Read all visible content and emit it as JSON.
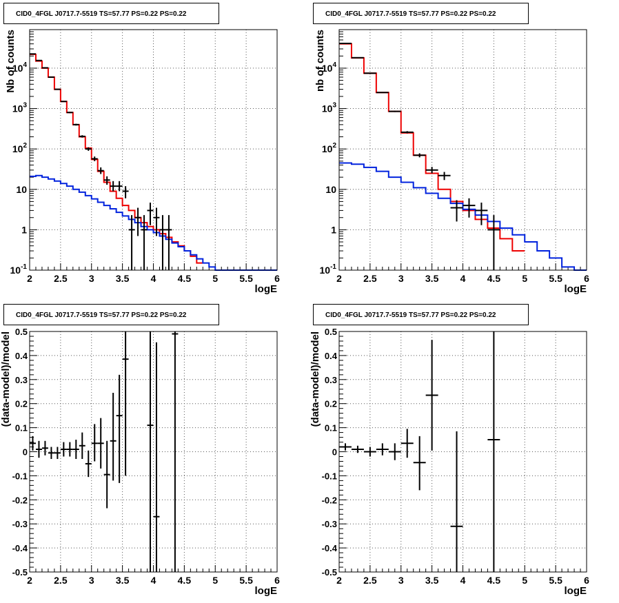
{
  "colors": {
    "model_total": "#ee0000",
    "model_source": "#0022dd",
    "data": "#000000",
    "grid": "#555555"
  },
  "chart_data": [
    {
      "type": "line",
      "title": "CID0_4FGL J0717.7-5519 TS=57.77 PS=0.22 PS=0.22",
      "xlabel": "logE",
      "ylabel": "Nb of counts",
      "log_y": true,
      "xlim": [
        2,
        6
      ],
      "ylim": [
        0.1,
        90000
      ],
      "grid": true,
      "xticks": [
        "2",
        "2.5",
        "3",
        "3.5",
        "4",
        "4.5",
        "5",
        "5.5",
        "6"
      ],
      "yticks": [
        {
          "value": 0.1,
          "base": "10",
          "exp": "-1"
        },
        {
          "value": 1,
          "base": "1",
          "exp": ""
        },
        {
          "value": 10,
          "base": "10",
          "exp": ""
        },
        {
          "value": 100,
          "base": "10",
          "exp": "2"
        },
        {
          "value": 1000,
          "base": "10",
          "exp": "3"
        },
        {
          "value": 10000,
          "base": "10",
          "exp": "4"
        }
      ],
      "bin_width": 0.1,
      "series": [
        {
          "color_key": "model_total",
          "bins": [
            2.0,
            2.1,
            2.2,
            2.3,
            2.4,
            2.5,
            2.6,
            2.7,
            2.8,
            2.9,
            3.0,
            3.1,
            3.2,
            3.3,
            3.4,
            3.5,
            3.6,
            3.7,
            3.8,
            3.9,
            4.0,
            4.1,
            4.2,
            4.3,
            4.4,
            4.5,
            4.6,
            4.7
          ],
          "values": [
            22000,
            15000,
            10000,
            6000,
            3000,
            1500,
            800,
            400,
            200,
            105,
            55,
            28,
            15,
            9,
            6,
            4,
            3,
            2,
            1.5,
            1.2,
            1.0,
            0.8,
            0.65,
            0.5,
            0.4,
            0.3,
            0.22,
            0.15
          ]
        },
        {
          "color_key": "model_source",
          "bins": [
            2.0,
            2.1,
            2.2,
            2.3,
            2.4,
            2.5,
            2.6,
            2.7,
            2.8,
            2.9,
            3.0,
            3.1,
            3.2,
            3.3,
            3.4,
            3.5,
            3.6,
            3.7,
            3.8,
            3.9,
            4.0,
            4.1,
            4.2,
            4.3,
            4.4,
            4.5,
            4.6,
            4.7,
            4.8,
            4.9,
            5.0,
            5.1,
            5.2,
            5.3,
            5.4,
            5.5,
            5.6,
            5.7,
            5.8,
            5.9
          ],
          "values": [
            21,
            22,
            20,
            18,
            16,
            14,
            12,
            10,
            8.5,
            7,
            5.8,
            4.8,
            4.0,
            3.3,
            2.7,
            2.2,
            1.8,
            1.5,
            1.2,
            1.0,
            0.85,
            0.7,
            0.58,
            0.47,
            0.38,
            0.3,
            0.24,
            0.19,
            0.15,
            0.12,
            0.1,
            0.1,
            0.1,
            0.1,
            0.1,
            0.1,
            0.1,
            0.1,
            0.1,
            0.1
          ]
        }
      ],
      "points": [
        {
          "x": 2.05,
          "y": 22500,
          "ylo": 22300,
          "yhi": 22700
        },
        {
          "x": 2.15,
          "y": 15500,
          "ylo": 15350,
          "yhi": 15650
        },
        {
          "x": 2.25,
          "y": 10200,
          "ylo": 10100,
          "yhi": 10300
        },
        {
          "x": 2.35,
          "y": 6000,
          "ylo": 5920,
          "yhi": 6080
        },
        {
          "x": 2.45,
          "y": 3000,
          "ylo": 2950,
          "yhi": 3050
        },
        {
          "x": 2.55,
          "y": 1500,
          "ylo": 1460,
          "yhi": 1540
        },
        {
          "x": 2.65,
          "y": 800,
          "ylo": 770,
          "yhi": 830
        },
        {
          "x": 2.75,
          "y": 400,
          "ylo": 380,
          "yhi": 420
        },
        {
          "x": 2.85,
          "y": 205,
          "ylo": 191,
          "yhi": 219
        },
        {
          "x": 2.95,
          "y": 100,
          "ylo": 90,
          "yhi": 110
        },
        {
          "x": 3.05,
          "y": 57,
          "ylo": 50,
          "yhi": 65
        },
        {
          "x": 3.15,
          "y": 29,
          "ylo": 24,
          "yhi": 35
        },
        {
          "x": 3.25,
          "y": 17,
          "ylo": 13,
          "yhi": 21
        },
        {
          "x": 3.35,
          "y": 12,
          "ylo": 9,
          "yhi": 16
        },
        {
          "x": 3.45,
          "y": 12,
          "ylo": 9,
          "yhi": 16
        },
        {
          "x": 3.55,
          "y": 9,
          "ylo": 6,
          "yhi": 12
        },
        {
          "x": 3.65,
          "y": 1,
          "ylo": 0.1,
          "yhi": 2.3
        },
        {
          "x": 3.75,
          "y": 2,
          "ylo": 0.7,
          "yhi": 3.5
        },
        {
          "x": 3.85,
          "y": 1,
          "ylo": 0.1,
          "yhi": 2.3
        },
        {
          "x": 3.95,
          "y": 3,
          "ylo": 1.3,
          "yhi": 4.7
        },
        {
          "x": 4.05,
          "y": 2,
          "ylo": 0.7,
          "yhi": 3.5
        },
        {
          "x": 4.15,
          "y": 1,
          "ylo": 0.1,
          "yhi": 2.3
        },
        {
          "x": 4.25,
          "y": 1,
          "ylo": 0.1,
          "yhi": 2.3
        }
      ]
    },
    {
      "type": "line",
      "title": "CID0_4FGL J0717.7-5519 TS=57.77 PS=0.22 PS=0.22",
      "xlabel": "logE",
      "ylabel": "nb of counts",
      "log_y": true,
      "xlim": [
        2,
        6
      ],
      "ylim": [
        0.1,
        90000
      ],
      "grid": true,
      "xticks": [
        "2",
        "2.5",
        "3",
        "3.5",
        "4",
        "4.5",
        "5",
        "5.5",
        "6"
      ],
      "yticks": [
        {
          "value": 0.1,
          "base": "10",
          "exp": "-1"
        },
        {
          "value": 1,
          "base": "1",
          "exp": ""
        },
        {
          "value": 10,
          "base": "10",
          "exp": ""
        },
        {
          "value": 100,
          "base": "10",
          "exp": "2"
        },
        {
          "value": 1000,
          "base": "10",
          "exp": "3"
        },
        {
          "value": 10000,
          "base": "10",
          "exp": "4"
        }
      ],
      "bin_width": 0.2,
      "series": [
        {
          "color_key": "model_total",
          "bins": [
            2.0,
            2.2,
            2.4,
            2.6,
            2.8,
            3.0,
            3.2,
            3.4,
            3.6,
            3.8,
            4.0,
            4.2,
            4.4,
            4.6,
            4.8
          ],
          "values": [
            40000,
            18000,
            7500,
            2500,
            850,
            250,
            70,
            25,
            10,
            5,
            3,
            1.8,
            1.1,
            0.6,
            0.3
          ]
        },
        {
          "color_key": "model_source",
          "bins": [
            2.0,
            2.2,
            2.4,
            2.6,
            2.8,
            3.0,
            3.2,
            3.4,
            3.6,
            3.8,
            4.0,
            4.2,
            4.4,
            4.6,
            4.8,
            5.0,
            5.2,
            5.4,
            5.6,
            5.8
          ],
          "values": [
            45,
            42,
            35,
            28,
            20,
            15,
            11,
            8,
            6,
            4.5,
            3.2,
            2.3,
            1.6,
            1.1,
            0.75,
            0.5,
            0.3,
            0.2,
            0.12,
            0.1
          ]
        }
      ],
      "points": [
        {
          "x": 2.1,
          "y": 41000,
          "ylo": 40800,
          "yhi": 41200
        },
        {
          "x": 2.3,
          "y": 18200,
          "ylo": 18050,
          "yhi": 18350
        },
        {
          "x": 2.5,
          "y": 7500,
          "ylo": 7410,
          "yhi": 7590
        },
        {
          "x": 2.7,
          "y": 2500,
          "ylo": 2450,
          "yhi": 2550
        },
        {
          "x": 2.9,
          "y": 850,
          "ylo": 820,
          "yhi": 880
        },
        {
          "x": 3.1,
          "y": 260,
          "ylo": 244,
          "yhi": 276
        },
        {
          "x": 3.3,
          "y": 70,
          "ylo": 62,
          "yhi": 78
        },
        {
          "x": 3.5,
          "y": 30,
          "ylo": 25,
          "yhi": 36
        },
        {
          "x": 3.7,
          "y": 22,
          "ylo": 17,
          "yhi": 27
        },
        {
          "x": 3.9,
          "y": 3.5,
          "ylo": 1.6,
          "yhi": 5.4
        },
        {
          "x": 4.1,
          "y": 4,
          "ylo": 2.0,
          "yhi": 6.0
        },
        {
          "x": 4.3,
          "y": 3,
          "ylo": 1.3,
          "yhi": 4.7
        },
        {
          "x": 4.5,
          "y": 1,
          "ylo": 0.1,
          "yhi": 2.3
        }
      ]
    },
    {
      "type": "scatter",
      "title": "CID0_4FGL J0717.7-5519 TS=57.77 PS=0.22 PS=0.22",
      "xlabel": "logE",
      "ylabel": "(data-model)/model",
      "log_y": false,
      "xlim": [
        2,
        6
      ],
      "ylim": [
        -0.5,
        0.5
      ],
      "grid": true,
      "xticks": [
        "2",
        "2.5",
        "3",
        "3.5",
        "4",
        "4.5",
        "5",
        "5.5",
        "6"
      ],
      "ytick_values": [
        -0.5,
        -0.4,
        -0.3,
        -0.2,
        -0.1,
        0,
        0.1,
        0.2,
        0.3,
        0.4,
        0.5
      ],
      "ytick_labels": [
        "-0.5",
        "-0.4",
        "-0.3",
        "-0.2",
        "-0.1",
        "0",
        "0.1",
        "0.2",
        "0.3",
        "0.4",
        "0.5"
      ],
      "bin_width": 0.1,
      "points": [
        {
          "x": 2.05,
          "y": 0.035,
          "ylo": 0.005,
          "yhi": 0.065
        },
        {
          "x": 2.15,
          "y": 0.01,
          "ylo": -0.025,
          "yhi": 0.045
        },
        {
          "x": 2.25,
          "y": 0.015,
          "ylo": -0.015,
          "yhi": 0.045
        },
        {
          "x": 2.35,
          "y": -0.005,
          "ylo": -0.03,
          "yhi": 0.02
        },
        {
          "x": 2.45,
          "y": -0.005,
          "ylo": -0.03,
          "yhi": 0.02
        },
        {
          "x": 2.55,
          "y": 0.01,
          "ylo": -0.02,
          "yhi": 0.04
        },
        {
          "x": 2.65,
          "y": 0.01,
          "ylo": -0.02,
          "yhi": 0.04
        },
        {
          "x": 2.75,
          "y": 0.01,
          "ylo": -0.03,
          "yhi": 0.05
        },
        {
          "x": 2.85,
          "y": 0.025,
          "ylo": -0.03,
          "yhi": 0.08
        },
        {
          "x": 2.95,
          "y": -0.05,
          "ylo": -0.105,
          "yhi": 0.005
        },
        {
          "x": 3.05,
          "y": 0.035,
          "ylo": -0.04,
          "yhi": 0.115
        },
        {
          "x": 3.15,
          "y": 0.035,
          "ylo": -0.07,
          "yhi": 0.14
        },
        {
          "x": 3.25,
          "y": -0.095,
          "ylo": -0.235,
          "yhi": 0.045
        },
        {
          "x": 3.35,
          "y": 0.045,
          "ylo": -0.12,
          "yhi": 0.245
        },
        {
          "x": 3.45,
          "y": 0.15,
          "ylo": -0.13,
          "yhi": 0.32
        },
        {
          "x": 3.55,
          "y": 0.385,
          "ylo": -0.1,
          "yhi": 0.5
        },
        {
          "x": 3.95,
          "y": 0.11,
          "ylo": -0.5,
          "yhi": 0.5
        },
        {
          "x": 4.05,
          "y": -0.27,
          "ylo": -0.5,
          "yhi": 0.455
        },
        {
          "x": 4.35,
          "y": 0.49,
          "ylo": -0.5,
          "yhi": 0.5
        }
      ]
    },
    {
      "type": "scatter",
      "title": "CID0_4FGL J0717.7-5519 TS=57.77 PS=0.22 PS=0.22",
      "xlabel": "logE",
      "ylabel": "(data-model)/model",
      "log_y": false,
      "xlim": [
        2,
        6
      ],
      "ylim": [
        -0.5,
        0.5
      ],
      "grid": true,
      "xticks": [
        "2",
        "2.5",
        "3",
        "3.5",
        "4",
        "4.5",
        "5",
        "5.5",
        "6"
      ],
      "ytick_values": [
        -0.5,
        -0.4,
        -0.3,
        -0.2,
        -0.1,
        0,
        0.1,
        0.2,
        0.3,
        0.4,
        0.5
      ],
      "ytick_labels": [
        "-0.5",
        "-0.4",
        "-0.3",
        "-0.2",
        "-0.1",
        "0",
        "0.1",
        "0.2",
        "0.3",
        "0.4",
        "0.5"
      ],
      "bin_width": 0.2,
      "points": [
        {
          "x": 2.1,
          "y": 0.02,
          "ylo": 0.005,
          "yhi": 0.035
        },
        {
          "x": 2.3,
          "y": 0.01,
          "ylo": -0.005,
          "yhi": 0.025
        },
        {
          "x": 2.5,
          "y": 0.0,
          "ylo": -0.02,
          "yhi": 0.02
        },
        {
          "x": 2.7,
          "y": 0.01,
          "ylo": -0.015,
          "yhi": 0.035
        },
        {
          "x": 2.9,
          "y": 0.0,
          "ylo": -0.035,
          "yhi": 0.035
        },
        {
          "x": 3.1,
          "y": 0.035,
          "ylo": -0.025,
          "yhi": 0.095
        },
        {
          "x": 3.3,
          "y": -0.045,
          "ylo": -0.16,
          "yhi": 0.065
        },
        {
          "x": 3.5,
          "y": 0.235,
          "ylo": 0.005,
          "yhi": 0.465
        },
        {
          "x": 3.9,
          "y": -0.31,
          "ylo": -0.5,
          "yhi": 0.085
        },
        {
          "x": 4.5,
          "y": 0.05,
          "ylo": -0.5,
          "yhi": 0.5
        }
      ]
    }
  ]
}
